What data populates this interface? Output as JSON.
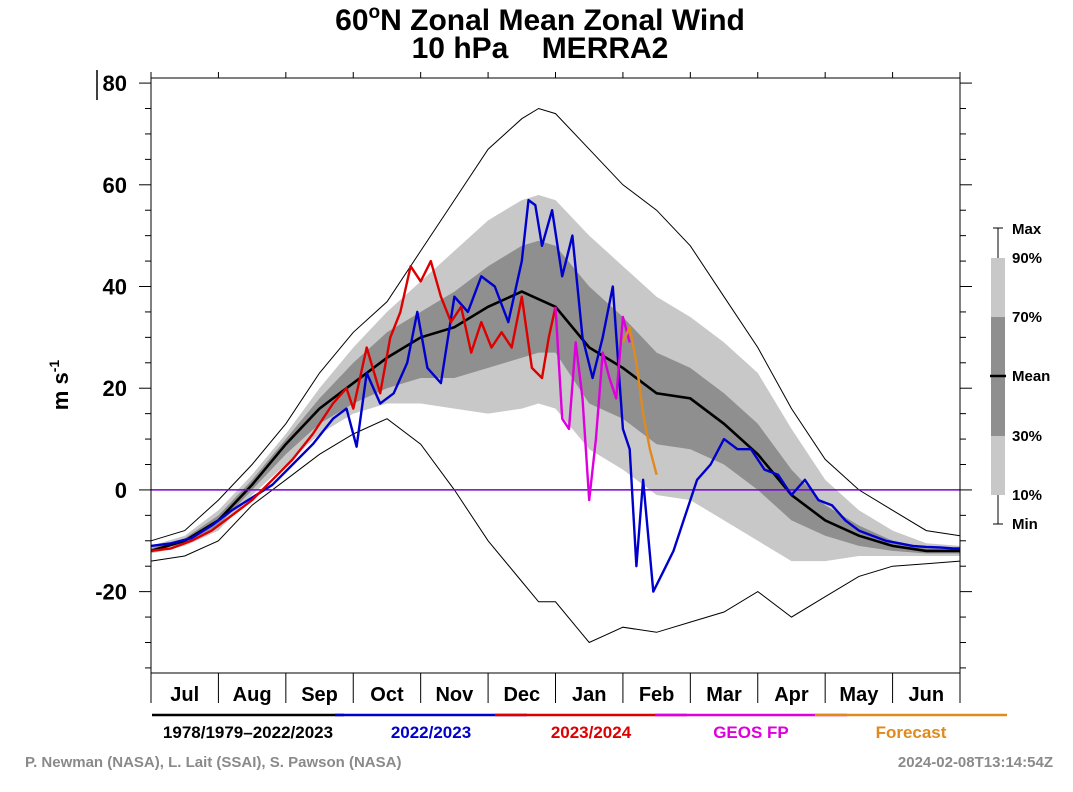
{
  "chart_data": {
    "type": "line",
    "title_line1": "60",
    "title_sup": "o",
    "title_line1_rest": "N Zonal Mean Zonal Wind",
    "title_line2": "10 hPa    MERRA2",
    "ylabel_main": "m s",
    "ylabel_sup": "-1",
    "ylim": [
      -36,
      81
    ],
    "xlim": [
      0,
      12
    ],
    "yticks": [
      80,
      60,
      40,
      20,
      0,
      -20
    ],
    "ytick_labels": [
      "80",
      "60",
      "40",
      "20",
      "0",
      "-20"
    ],
    "months": [
      "Jul",
      "Aug",
      "Sep",
      "Oct",
      "Nov",
      "Dec",
      "Jan",
      "Feb",
      "Mar",
      "Apr",
      "May",
      "Jun"
    ],
    "zero_line_color": "#7a00d0",
    "percentile_legend": [
      "Max",
      "90%",
      "70%",
      "Mean",
      "30%",
      "10%",
      "Min"
    ],
    "climatology": {
      "x": [
        0,
        0.5,
        1,
        1.5,
        2,
        2.5,
        3,
        3.5,
        4,
        4.5,
        5,
        5.5,
        5.75,
        6,
        6.5,
        7,
        7.5,
        8,
        8.5,
        9,
        9.5,
        10,
        10.5,
        11,
        11.5,
        12
      ],
      "mean": [
        -12,
        -10,
        -6,
        1,
        9,
        16,
        21,
        26,
        30,
        32,
        36,
        39,
        37.5,
        36,
        28,
        24,
        19,
        18,
        13,
        7,
        -1,
        -6,
        -9,
        -11,
        -12,
        -12
      ],
      "p30": [
        -12,
        -10.5,
        -7,
        0,
        7,
        13,
        17,
        20,
        22,
        22,
        24,
        26,
        27,
        27,
        17,
        14,
        9,
        8,
        5,
        0,
        -6,
        -9,
        -11,
        -12,
        -12.5,
        -12.5
      ],
      "p70": [
        -11.5,
        -9.5,
        -5,
        2,
        10,
        18,
        25,
        31,
        35,
        39,
        44,
        48,
        49,
        48,
        40,
        34,
        27,
        24,
        19,
        13,
        4,
        -3,
        -7,
        -10,
        -11.5,
        -11.5
      ],
      "p10": [
        -12.5,
        -11,
        -8,
        -1,
        5,
        11,
        15,
        17,
        17,
        16,
        15,
        16,
        17,
        16,
        8,
        4,
        -1,
        -2,
        -6,
        -10,
        -14,
        -14,
        -13,
        -13,
        -13,
        -13
      ],
      "p90": [
        -11,
        -9,
        -4,
        3,
        11,
        20,
        28,
        35,
        41,
        47,
        53,
        57,
        58,
        57,
        50,
        44,
        38,
        34,
        29,
        23,
        12,
        2,
        -4,
        -8,
        -10.5,
        -11
      ],
      "min": [
        -14,
        -13,
        -10,
        -3,
        2,
        7,
        11,
        14,
        9,
        0,
        -10,
        -18,
        -22,
        -22,
        -30,
        -27,
        -28,
        -26,
        -24,
        -20,
        -25,
        -21,
        -17,
        -15,
        -14.5,
        -14
      ],
      "max": [
        -10,
        -8,
        -2,
        5,
        13,
        23,
        31,
        37,
        47,
        57,
        67,
        73,
        75,
        74,
        67,
        60,
        55,
        48,
        38,
        28,
        16,
        6,
        0,
        -4,
        -8,
        -9
      ]
    },
    "series": [
      {
        "name": "2022/2023",
        "color": "#0000cc",
        "x": [
          0,
          0.3,
          0.6,
          0.9,
          1.2,
          1.5,
          1.8,
          2.1,
          2.4,
          2.7,
          2.9,
          3.05,
          3.2,
          3.4,
          3.6,
          3.8,
          3.95,
          4.1,
          4.3,
          4.5,
          4.7,
          4.9,
          5.1,
          5.3,
          5.5,
          5.6,
          5.7,
          5.8,
          5.95,
          6.1,
          6.25,
          6.4,
          6.55,
          6.7,
          6.85,
          7.0,
          7.1,
          7.2,
          7.3,
          7.45,
          7.6,
          7.75,
          7.9,
          8.1,
          8.3,
          8.5,
          8.7,
          8.9,
          9.1,
          9.3,
          9.5,
          9.7,
          9.9,
          10.1,
          10.3,
          10.5,
          10.7,
          10.9,
          11.1,
          11.3,
          11.5,
          11.7,
          11.9,
          12.0
        ],
        "y": [
          -11,
          -10.5,
          -9.5,
          -7,
          -4,
          -1.5,
          1,
          5,
          9,
          14,
          16,
          8.5,
          23,
          17,
          19,
          25,
          35,
          24,
          21,
          38,
          35,
          42,
          40,
          33,
          45,
          57,
          56,
          48,
          55,
          42,
          50,
          30,
          22,
          30,
          40,
          12,
          8,
          -15,
          2,
          -20,
          -16,
          -12,
          -6,
          2,
          5,
          10,
          8,
          8,
          4,
          3,
          -1,
          2,
          -2,
          -3,
          -6,
          -8,
          -9,
          -10,
          -10.5,
          -11,
          -11.2,
          -11.3,
          -11.5,
          -11.5
        ]
      },
      {
        "name": "2023/2024",
        "color": "#dd0000",
        "x": [
          0,
          0.3,
          0.6,
          0.9,
          1.2,
          1.5,
          1.8,
          2.1,
          2.4,
          2.7,
          2.9,
          3.0,
          3.2,
          3.4,
          3.55,
          3.7,
          3.85,
          4.0,
          4.15,
          4.3,
          4.45,
          4.6,
          4.75,
          4.9,
          5.05,
          5.2,
          5.35,
          5.5,
          5.65,
          5.8,
          5.9,
          6.0
        ],
        "y": [
          -12,
          -11.5,
          -10,
          -8,
          -5,
          -2,
          2,
          6,
          11,
          17,
          20,
          16,
          28,
          19,
          30,
          35,
          44,
          41,
          45,
          38,
          33,
          36,
          27,
          33,
          28,
          31,
          28,
          38,
          24,
          22,
          30,
          36
        ]
      },
      {
        "name": "GEOS FP",
        "color": "#dd00dd",
        "x": [
          6.0,
          6.1,
          6.2,
          6.3,
          6.4,
          6.5,
          6.6,
          6.7,
          6.8,
          6.9,
          7.0,
          7.1
        ],
        "y": [
          36,
          14,
          12,
          29,
          18,
          -2,
          10,
          27,
          22,
          18,
          34,
          29
        ]
      },
      {
        "name": "Forecast",
        "color": "#e08a1e",
        "x": [
          7.0,
          7.1,
          7.2,
          7.3,
          7.4,
          7.5
        ],
        "y": [
          29,
          32,
          25,
          15,
          8,
          3
        ]
      }
    ],
    "legend_labels": [
      "1978/1979–2022/2023",
      "2022/2023",
      "2023/2024",
      "GEOS FP",
      "Forecast"
    ],
    "legend_colors": [
      "#000000",
      "#0000cc",
      "#dd0000",
      "#dd00dd",
      "#e08a1e"
    ]
  },
  "credits": {
    "authors": "P. Newman (NASA), L. Lait (SSAI), S. Pawson (NASA)",
    "timestamp": "2024-02-08T13:14:54Z"
  },
  "colors": {
    "band_outer": "#c8c8c8",
    "band_inner": "#8f8f8f",
    "frame": "#000000"
  }
}
